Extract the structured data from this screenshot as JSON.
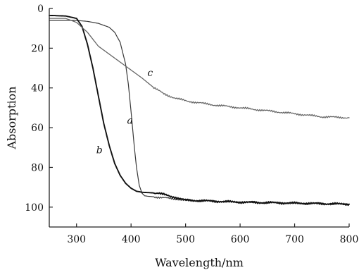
{
  "chart_data": {
    "type": "line",
    "title": "",
    "xlabel": "Wavelength/nm",
    "ylabel": "Absorption",
    "xlim": [
      250,
      800
    ],
    "ylim": [
      0,
      110
    ],
    "y_inverted": true,
    "grid": false,
    "x_ticks": [
      300,
      400,
      500,
      600,
      700,
      800
    ],
    "y_ticks": [
      0,
      20,
      40,
      60,
      80,
      100
    ],
    "series": [
      {
        "name": "a",
        "color": "#3a3a3a",
        "x": [
          250,
          280,
          300,
          320,
          340,
          360,
          370,
          380,
          390,
          395,
          400,
          405,
          410,
          415,
          420,
          425,
          430,
          450,
          500,
          600,
          700,
          800
        ],
        "y": [
          6,
          6,
          6,
          6.5,
          7.5,
          9.5,
          12,
          17,
          28,
          38,
          52,
          67,
          80,
          89,
          93,
          94.3,
          94.5,
          95,
          96.5,
          97.5,
          98,
          98.5
        ]
      },
      {
        "name": "b",
        "color": "#111111",
        "x": [
          250,
          280,
          300,
          310,
          320,
          330,
          340,
          350,
          360,
          370,
          380,
          390,
          400,
          410,
          420,
          450,
          480,
          500,
          600,
          700,
          800
        ],
        "y": [
          3.5,
          3.8,
          5,
          9,
          18,
          30,
          44,
          58,
          69,
          78,
          84,
          88,
          90.5,
          92,
          92.5,
          93,
          95,
          96.5,
          97.5,
          98,
          98.5
        ]
      },
      {
        "name": "c",
        "color": "#666666",
        "x": [
          250,
          280,
          300,
          320,
          340,
          360,
          380,
          400,
          420,
          440,
          460,
          480,
          500,
          550,
          600,
          650,
          700,
          750,
          800
        ],
        "y": [
          5,
          5,
          7,
          12,
          19,
          23,
          27,
          31,
          35,
          39.5,
          43,
          45,
          46.5,
          48.5,
          50,
          51.5,
          53,
          54.5,
          55
        ]
      }
    ],
    "annotations": [
      {
        "text": "a",
        "x": 398,
        "y": 58
      },
      {
        "text": "b",
        "x": 342,
        "y": 73
      },
      {
        "text": "c",
        "x": 435,
        "y": 34
      }
    ]
  }
}
